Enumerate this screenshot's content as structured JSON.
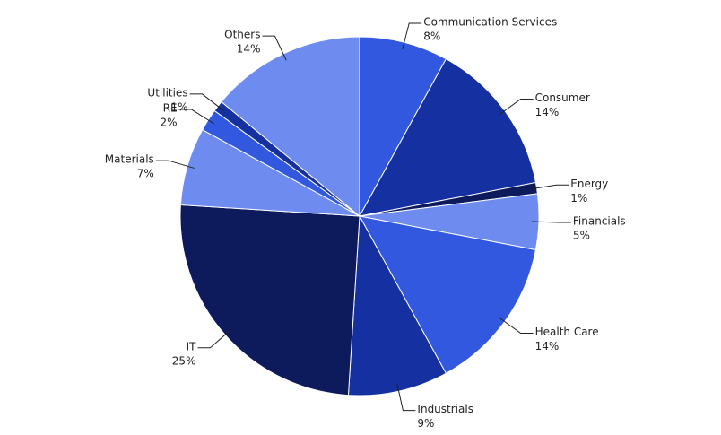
{
  "chart_data": {
    "type": "pie",
    "categories": [
      "Communication Services",
      "Consumer",
      "Energy",
      "Financials",
      "Health Care",
      "Industrials",
      "IT",
      "Materials",
      "RE",
      "Utilities",
      "Others"
    ],
    "values": [
      8,
      14,
      1,
      5,
      14,
      9,
      25,
      7,
      2,
      1,
      14
    ],
    "value_labels": [
      "8%",
      "14%",
      "1%",
      "5%",
      "14%",
      "9%",
      "25%",
      "7%",
      "2%",
      "1%",
      "14%"
    ],
    "colors": [
      "#3358e0",
      "#1530a0",
      "#0d1a5c",
      "#6e8cf0",
      "#3358e0",
      "#1530a0",
      "#0d1a5c",
      "#6e8cf0",
      "#3358e0",
      "#1530a0",
      "#6e8cf0"
    ]
  }
}
